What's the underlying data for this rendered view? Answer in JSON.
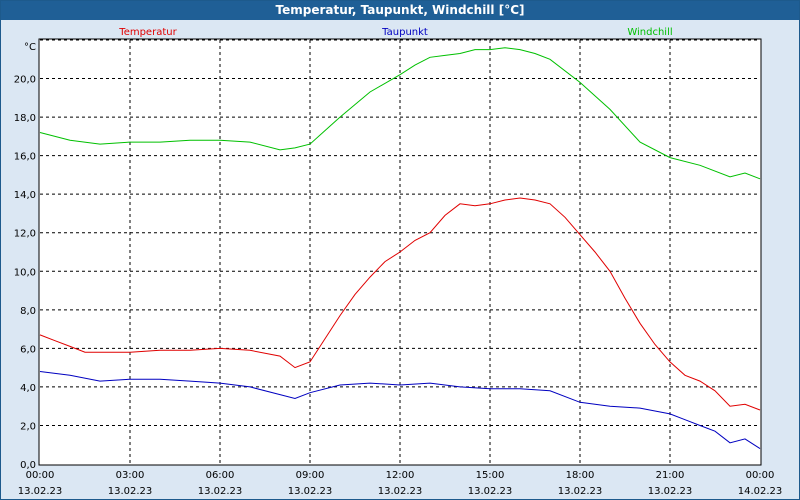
{
  "window": {
    "title": "Temperatur, Taupunkt, Windchill [°C]"
  },
  "colors": {
    "background": "#dbe7f3",
    "titlebar": "#1f5f96",
    "temperatur": "#e00000",
    "taupunkt": "#0000c0",
    "windchill": "#00c000",
    "grid": "#000000"
  },
  "chart_data": {
    "type": "line",
    "title": "Temperatur, Taupunkt, Windchill [°C]",
    "ylabel": "°C",
    "xlabel": "",
    "xlim": [
      0,
      24
    ],
    "ylim": [
      0,
      22
    ],
    "grid": true,
    "legend": "top",
    "y_ticks": [
      {
        "value": 0,
        "label": "0,0"
      },
      {
        "value": 2,
        "label": "2,0"
      },
      {
        "value": 4,
        "label": "4,0"
      },
      {
        "value": 6,
        "label": "6,0"
      },
      {
        "value": 8,
        "label": "8,0"
      },
      {
        "value": 10,
        "label": "10,0"
      },
      {
        "value": 12,
        "label": "12,0"
      },
      {
        "value": 14,
        "label": "14,0"
      },
      {
        "value": 16,
        "label": "16,0"
      },
      {
        "value": 18,
        "label": "18,0"
      },
      {
        "value": 20,
        "label": "20,0"
      }
    ],
    "x_ticks": [
      {
        "value": 0,
        "time": "00:00",
        "date": "13.02.23"
      },
      {
        "value": 3,
        "time": "03:00",
        "date": "13.02.23"
      },
      {
        "value": 6,
        "time": "06:00",
        "date": "13.02.23"
      },
      {
        "value": 9,
        "time": "09:00",
        "date": "13.02.23"
      },
      {
        "value": 12,
        "time": "12:00",
        "date": "13.02.23"
      },
      {
        "value": 15,
        "time": "15:00",
        "date": "13.02.23"
      },
      {
        "value": 18,
        "time": "18:00",
        "date": "13.02.23"
      },
      {
        "value": 21,
        "time": "21:00",
        "date": "13.02.23"
      },
      {
        "value": 24,
        "time": "00:00",
        "date": "14.02.23"
      }
    ],
    "series": [
      {
        "name": "Temperatur",
        "color": "#e00000",
        "x": [
          0,
          0.5,
          1,
          1.5,
          2,
          3,
          4,
          5,
          6,
          7,
          8,
          8.5,
          9,
          10,
          10.5,
          11,
          11.5,
          12,
          12.5,
          13,
          13.5,
          14,
          14.5,
          15,
          15.5,
          16,
          16.5,
          17,
          17.5,
          18,
          18.5,
          19,
          19.5,
          20,
          20.5,
          21,
          21.5,
          22,
          22.5,
          23,
          23.5,
          24
        ],
        "y": [
          6.7,
          6.4,
          6.1,
          5.8,
          5.8,
          5.8,
          5.9,
          5.9,
          6.0,
          5.9,
          5.6,
          5.0,
          5.3,
          7.7,
          8.8,
          9.7,
          10.5,
          11.0,
          11.6,
          12.0,
          12.9,
          13.5,
          13.4,
          13.5,
          13.7,
          13.8,
          13.7,
          13.5,
          12.8,
          11.9,
          11.0,
          10.0,
          8.6,
          7.3,
          6.2,
          5.3,
          4.6,
          4.3,
          3.8,
          3.0,
          3.1,
          2.8
        ]
      },
      {
        "name": "Taupunkt",
        "color": "#0000c0",
        "x": [
          0,
          1,
          2,
          3,
          4,
          5,
          6,
          7,
          8,
          8.5,
          9,
          10,
          11,
          12,
          13,
          14,
          15,
          16,
          17,
          18,
          19,
          20,
          21,
          21.5,
          22,
          22.5,
          23,
          23.5,
          24
        ],
        "y": [
          4.8,
          4.6,
          4.3,
          4.4,
          4.4,
          4.3,
          4.2,
          4.0,
          3.6,
          3.4,
          3.7,
          4.1,
          4.2,
          4.1,
          4.2,
          4.0,
          3.9,
          3.9,
          3.8,
          3.2,
          3.0,
          2.9,
          2.6,
          2.3,
          2.0,
          1.7,
          1.1,
          1.3,
          0.8
        ]
      },
      {
        "name": "Windchill",
        "color": "#00c000",
        "x": [
          0,
          1,
          2,
          3,
          4,
          5,
          6,
          7,
          8,
          8.5,
          9,
          10,
          11,
          12,
          12.5,
          13,
          13.5,
          14,
          14.5,
          15,
          15.5,
          16,
          16.5,
          17,
          18,
          19,
          20,
          21,
          22,
          23,
          23.5,
          24
        ],
        "y": [
          17.2,
          16.8,
          16.6,
          16.7,
          16.7,
          16.8,
          16.8,
          16.7,
          16.3,
          16.4,
          16.6,
          18.0,
          19.3,
          20.2,
          20.7,
          21.1,
          21.2,
          21.3,
          21.5,
          21.5,
          21.6,
          21.5,
          21.3,
          21.0,
          19.8,
          18.4,
          16.7,
          15.9,
          15.5,
          14.9,
          15.1,
          14.8
        ]
      }
    ]
  }
}
